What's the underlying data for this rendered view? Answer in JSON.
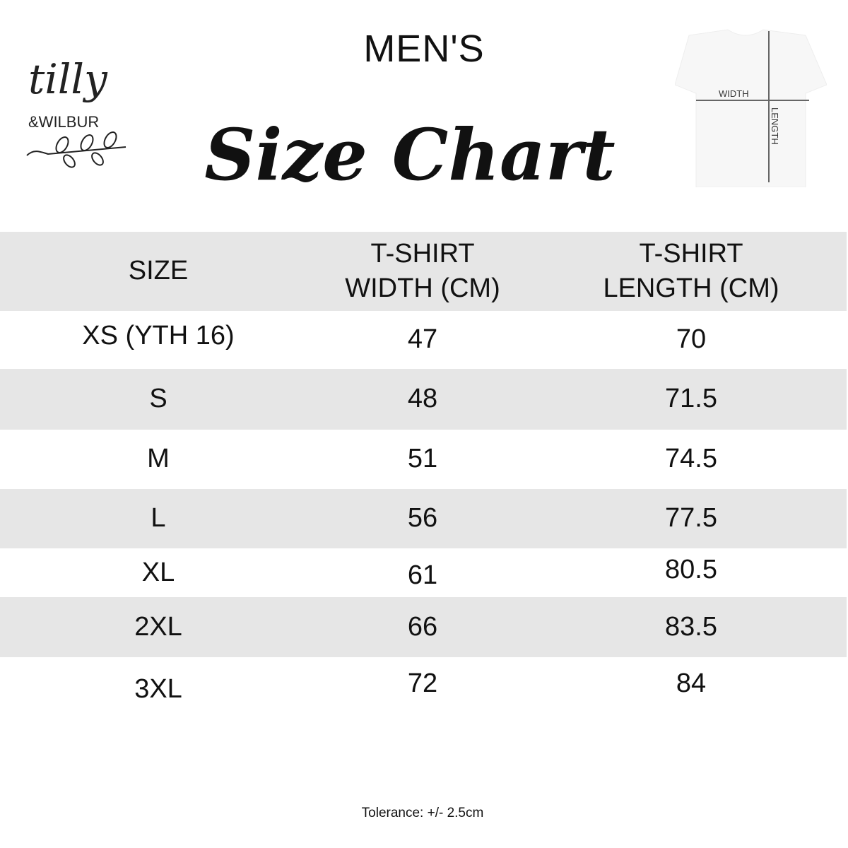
{
  "brand": {
    "logo_text_1": "tilly",
    "logo_text_2": "&WILBUR"
  },
  "header": {
    "subtitle": "MEN'S",
    "title": "Size Chart"
  },
  "diagram": {
    "width_label": "WIDTH",
    "length_label": "LENGTH"
  },
  "table": {
    "headers": [
      "SIZE",
      "T-SHIRT\nWIDTH (CM)",
      "T-SHIRT\nLENGTH (CM)"
    ],
    "header_lines": [
      [
        "SIZE"
      ],
      [
        "T-SHIRT",
        "WIDTH (CM)"
      ],
      [
        "T-SHIRT",
        "LENGTH (CM)"
      ]
    ],
    "rows": [
      [
        "XS (YTH 16)",
        "47",
        "70"
      ],
      [
        "S",
        "48",
        "71.5"
      ],
      [
        "M",
        "51",
        "74.5"
      ],
      [
        "L",
        "56",
        "77.5"
      ],
      [
        "XL",
        "61",
        "80.5"
      ],
      [
        "2XL",
        "66",
        "83.5"
      ],
      [
        "3XL",
        "72",
        "84"
      ]
    ],
    "stripe_color": "#e6e6e6"
  },
  "footer": {
    "tolerance": "Tolerance: +/- 2.5cm"
  }
}
